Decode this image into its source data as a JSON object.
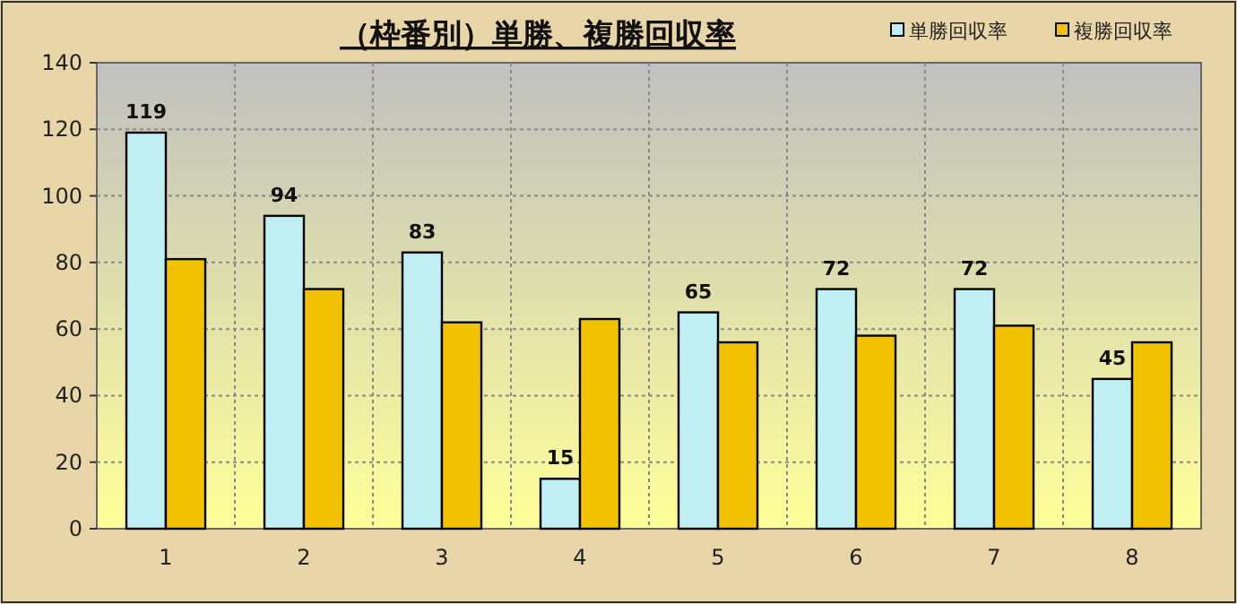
{
  "chart_data": {
    "type": "bar",
    "title": "（枠番別）単勝、複勝回収率",
    "categories": [
      "1",
      "2",
      "3",
      "4",
      "5",
      "6",
      "7",
      "8"
    ],
    "series": [
      {
        "name": "単勝回収率",
        "color": "#bfeff2",
        "values": [
          119,
          94,
          83,
          15,
          65,
          72,
          72,
          45
        ],
        "value_labels": [
          "119",
          "94",
          "83",
          "15",
          "65",
          "72",
          "72",
          "45"
        ]
      },
      {
        "name": "複勝回収率",
        "color": "#f2c200",
        "values": [
          81,
          72,
          62,
          63,
          56,
          58,
          61,
          56
        ]
      }
    ],
    "ylim": [
      0,
      140
    ],
    "yticks": [
      0,
      20,
      40,
      60,
      80,
      100,
      120,
      140
    ],
    "grid": true,
    "legend": "top right"
  }
}
